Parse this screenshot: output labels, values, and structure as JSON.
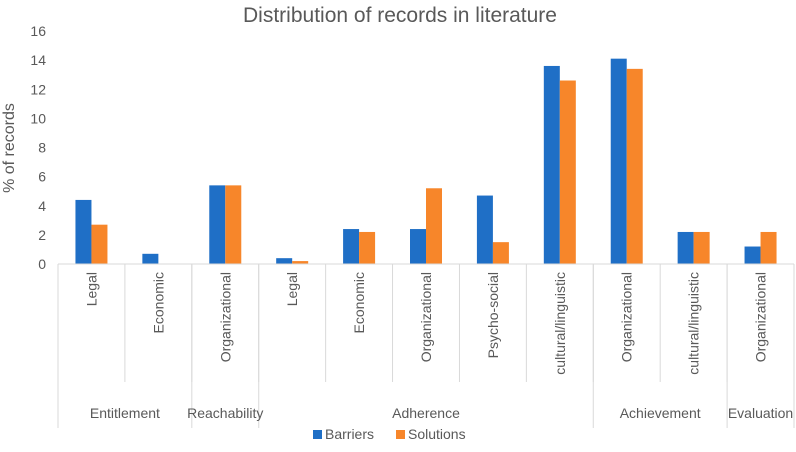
{
  "chart_data": {
    "type": "bar",
    "title": "Distribution of records in literature",
    "ylabel": "% of records",
    "xlabel": "",
    "ylim": [
      0,
      16
    ],
    "yticks": [
      0,
      2,
      4,
      6,
      8,
      10,
      12,
      14,
      16
    ],
    "grid": false,
    "legend": "bottom",
    "categories": [
      "Legal",
      "Economic",
      "Organizational",
      "Legal",
      "Economic",
      "Organizational",
      "Psycho-social",
      "cultural/linguistic",
      "Organizational",
      "cultural/linguistic",
      "Organizational"
    ],
    "groups": [
      {
        "label": "Entitlement",
        "count": 2
      },
      {
        "label": "Reachability",
        "count": 1
      },
      {
        "label": "Adherence",
        "count": 5
      },
      {
        "label": "Achievement",
        "count": 2
      },
      {
        "label": "Evaluation",
        "count": 1
      }
    ],
    "series": [
      {
        "name": "Barriers",
        "color": "#1f6fc6",
        "values": [
          4.4,
          0.7,
          5.4,
          0.4,
          2.4,
          2.4,
          4.7,
          13.6,
          14.1,
          2.2,
          1.2
        ]
      },
      {
        "name": "Solutions",
        "color": "#f7862a",
        "values": [
          2.7,
          0,
          5.4,
          0.2,
          2.2,
          5.2,
          1.5,
          12.6,
          13.4,
          2.2,
          2.2
        ]
      }
    ]
  }
}
